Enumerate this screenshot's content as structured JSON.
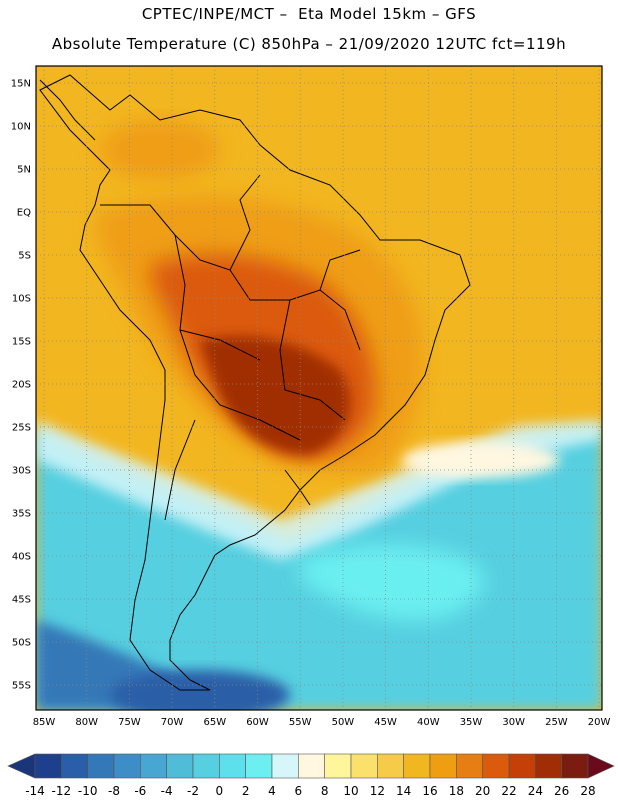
{
  "header": {
    "line1": "CPTEC/INPE/MCT –  Eta Model 15km – GFS",
    "line2": "Absolute Temperature (C) 850hPa – 21/09/2020 12UTC fct=119h"
  },
  "map": {
    "lat_labels": [
      "15N",
      "10N",
      "5N",
      "EQ",
      "5S",
      "10S",
      "15S",
      "20S",
      "25S",
      "30S",
      "35S",
      "40S",
      "45S",
      "50S",
      "55S"
    ],
    "lon_labels": [
      "85W",
      "80W",
      "75W",
      "70W",
      "65W",
      "60W",
      "55W",
      "50W",
      "45W",
      "40W",
      "35W",
      "30W",
      "25W",
      "20W"
    ],
    "grid": "dotted"
  },
  "colorbar": {
    "labels": [
      "-14",
      "-12",
      "-10",
      "-8",
      "-6",
      "-4",
      "-2",
      "0",
      "2",
      "4",
      "6",
      "8",
      "10",
      "12",
      "14",
      "16",
      "18",
      "20",
      "22",
      "24",
      "26",
      "28"
    ],
    "colors": [
      "#1d3f8c",
      "#2a5ea8",
      "#3478b8",
      "#3d8ec6",
      "#47a6d2",
      "#4fbcd8",
      "#56cfe0",
      "#5de0ec",
      "#6beff0",
      "#d6f6fa",
      "#fff7e0",
      "#fff59a",
      "#fbe06c",
      "#f6cb48",
      "#f2b620",
      "#ef9e12",
      "#e67e14",
      "#dc5a0c",
      "#c44008",
      "#a02d06",
      "#7a1c10"
    ]
  }
}
